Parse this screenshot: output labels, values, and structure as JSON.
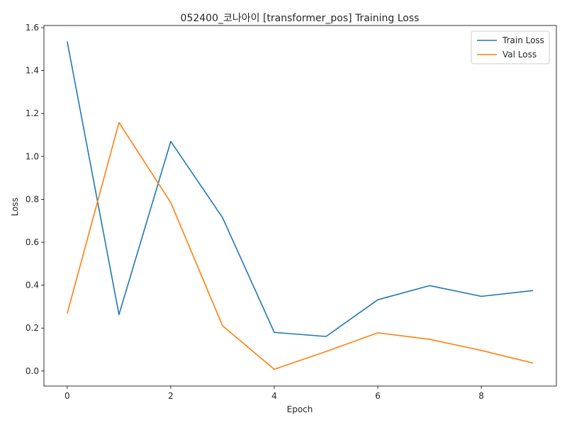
{
  "chart_data": {
    "type": "line",
    "title": "052400_코나아이 [transformer_pos] Training Loss",
    "xlabel": "Epoch",
    "ylabel": "Loss",
    "x": [
      0,
      1,
      2,
      3,
      4,
      5,
      6,
      7,
      8,
      9
    ],
    "xlim": [
      -0.45,
      9.45
    ],
    "ylim": [
      -0.07,
      1.61
    ],
    "xticks": [
      0,
      2,
      4,
      6,
      8
    ],
    "xtick_labels": [
      "0",
      "2",
      "4",
      "6",
      "8"
    ],
    "yticks": [
      0.0,
      0.2,
      0.4,
      0.6,
      0.8,
      1.0,
      1.2,
      1.4,
      1.6
    ],
    "ytick_labels": [
      "0.0",
      "0.2",
      "0.4",
      "0.6",
      "0.8",
      "1.0",
      "1.2",
      "1.4",
      "1.6"
    ],
    "grid": false,
    "legend_position": "top-right",
    "series": [
      {
        "name": "Train Loss",
        "color": "#1f77b4",
        "values": [
          1.535,
          0.263,
          1.07,
          0.715,
          0.18,
          0.161,
          0.332,
          0.398,
          0.348,
          0.375
        ]
      },
      {
        "name": "Val Loss",
        "color": "#ff7f0e",
        "values": [
          0.268,
          1.158,
          0.785,
          0.211,
          0.008,
          0.091,
          0.178,
          0.148,
          0.096,
          0.037
        ]
      }
    ]
  }
}
